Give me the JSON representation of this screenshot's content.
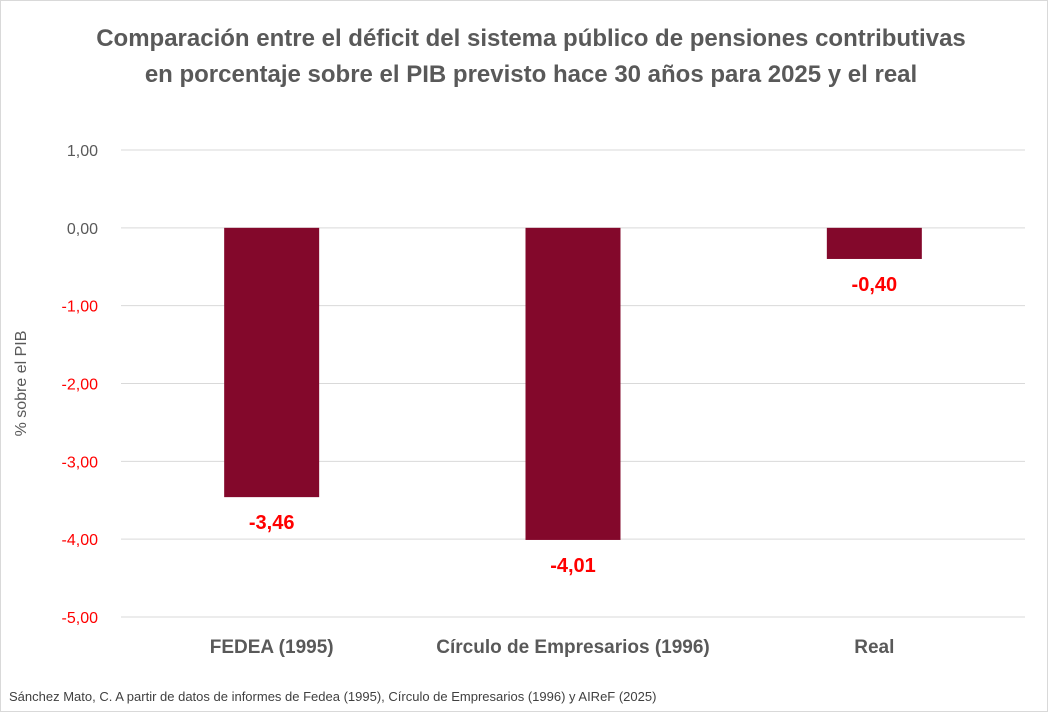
{
  "chart_data": {
    "type": "bar",
    "title": "Comparación entre el déficit del sistema público de pensiones contributivas en porcentaje sobre el PIB previsto hace 30 años para 2025 y el real",
    "xlabel": "",
    "ylabel": "% sobre el PIB",
    "categories": [
      "FEDEA (1995)",
      "Círculo de Empresarios (1996)",
      "Real"
    ],
    "values": [
      -3.46,
      -4.01,
      -0.4
    ],
    "data_labels": [
      "-3,46",
      "-4,01",
      "-0,40"
    ],
    "ylim": [
      -5,
      1
    ],
    "yticks": [
      1,
      0,
      -1,
      -2,
      -3,
      -4,
      -5
    ],
    "ytick_labels": [
      "1,00",
      "0,00",
      "-1,00",
      "-2,00",
      "-3,00",
      "-4,00",
      "-5,00"
    ],
    "grid": true,
    "legend": "none",
    "colors": {
      "bar": "#83082b",
      "data_label": "#ff0000",
      "negative_tick": "#ff0000",
      "positive_tick": "#595959",
      "gridline": "#d9d9d9",
      "title": "#595959"
    }
  },
  "source": "Sánchez Mato, C.  A partir de datos de informes de Fedea (1995), Círculo de Empresarios (1996) y AIReF (2025)"
}
